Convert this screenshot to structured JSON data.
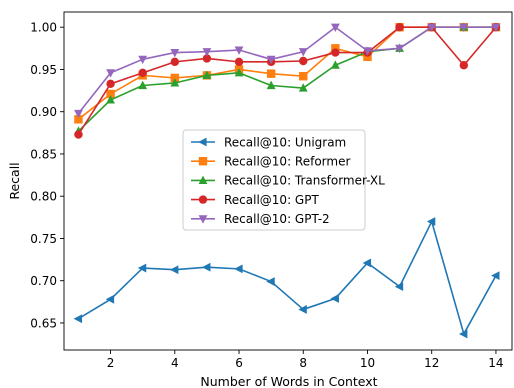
{
  "chart_data": {
    "type": "line",
    "title": "",
    "xlabel": "Number of Words in Context",
    "ylabel": "Recall",
    "xlim": [
      0.55,
      14.5
    ],
    "ylim": [
      0.618,
      1.018
    ],
    "xticks": [
      2,
      4,
      6,
      8,
      10,
      12,
      14
    ],
    "yticks": [
      0.65,
      0.7,
      0.75,
      0.8,
      0.85,
      0.9,
      0.95,
      1.0
    ],
    "ytick_labels": [
      "0.65",
      "0.70",
      "0.75",
      "0.80",
      "0.85",
      "0.90",
      "0.95",
      "1.00"
    ],
    "grid": false,
    "legend": "center",
    "x": [
      1,
      2,
      3,
      4,
      5,
      6,
      7,
      8,
      9,
      10,
      11,
      12,
      13,
      14
    ],
    "series": [
      {
        "name": "Recall@10: Unigram",
        "color": "#1f77b4",
        "marker": "triangle-left",
        "values": [
          0.655,
          0.678,
          0.715,
          0.713,
          0.716,
          0.714,
          0.699,
          0.666,
          0.679,
          0.721,
          0.693,
          0.77,
          0.637,
          0.706
        ]
      },
      {
        "name": "Recall@10: Reformer",
        "color": "#ff7f0e",
        "marker": "square",
        "values": [
          0.891,
          0.921,
          0.943,
          0.94,
          0.943,
          0.95,
          0.945,
          0.942,
          0.975,
          0.965,
          1.0,
          1.0,
          1.0,
          1.0
        ]
      },
      {
        "name": "Recall@10: Transformer-XL",
        "color": "#2ca02c",
        "marker": "triangle-up",
        "values": [
          0.877,
          0.914,
          0.931,
          0.934,
          0.943,
          0.946,
          0.931,
          0.928,
          0.955,
          0.971,
          0.975,
          1.0,
          1.0,
          1.0
        ]
      },
      {
        "name": "Recall@10: GPT",
        "color": "#d62728",
        "marker": "circle",
        "values": [
          0.873,
          0.933,
          0.946,
          0.959,
          0.963,
          0.959,
          0.959,
          0.96,
          0.97,
          0.97,
          1.0,
          1.0,
          0.955,
          1.0
        ]
      },
      {
        "name": "Recall@10: GPT-2",
        "color": "#9467bd",
        "marker": "triangle-down",
        "values": [
          0.898,
          0.946,
          0.962,
          0.97,
          0.971,
          0.973,
          0.962,
          0.971,
          1.0,
          0.972,
          0.975,
          1.0,
          1.0,
          1.0
        ]
      }
    ]
  }
}
